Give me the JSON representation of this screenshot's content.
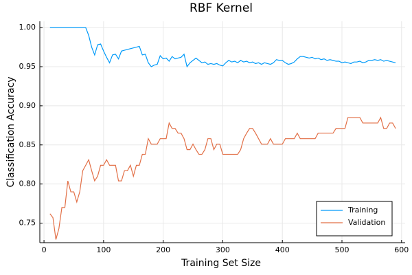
{
  "chart_data": {
    "type": "line",
    "title": "RBF Kernel",
    "x_label": "Training Set Size",
    "y_label": "Classification Accuracy",
    "x": [
      10,
      15,
      20,
      25,
      30,
      35,
      40,
      45,
      50,
      55,
      60,
      65,
      70,
      75,
      80,
      85,
      90,
      95,
      100,
      105,
      110,
      115,
      120,
      125,
      130,
      135,
      140,
      145,
      150,
      155,
      160,
      165,
      170,
      175,
      180,
      185,
      190,
      195,
      200,
      205,
      210,
      215,
      220,
      225,
      230,
      235,
      240,
      245,
      250,
      255,
      260,
      265,
      270,
      275,
      280,
      285,
      290,
      295,
      300,
      305,
      310,
      315,
      320,
      325,
      330,
      335,
      340,
      345,
      350,
      355,
      360,
      365,
      370,
      375,
      380,
      385,
      390,
      395,
      400,
      405,
      410,
      415,
      420,
      425,
      430,
      435,
      440,
      445,
      450,
      455,
      460,
      465,
      470,
      475,
      480,
      485,
      490,
      495,
      500,
      505,
      510,
      515,
      520,
      525,
      530,
      535,
      540,
      545,
      550,
      555,
      560,
      565,
      570,
      575,
      580,
      585,
      590
    ],
    "series": [
      {
        "name": "Training",
        "color": "#009af9",
        "values": [
          1.0,
          1.0,
          1.0,
          1.0,
          1.0,
          1.0,
          1.0,
          1.0,
          1.0,
          1.0,
          1.0,
          1.0,
          1.0,
          0.99,
          0.975,
          0.965,
          0.978,
          0.979,
          0.97,
          0.962,
          0.955,
          0.965,
          0.966,
          0.96,
          0.97,
          0.971,
          0.972,
          0.973,
          0.974,
          0.975,
          0.976,
          0.965,
          0.966,
          0.955,
          0.95,
          0.952,
          0.953,
          0.964,
          0.96,
          0.961,
          0.957,
          0.963,
          0.96,
          0.961,
          0.962,
          0.966,
          0.95,
          0.955,
          0.958,
          0.961,
          0.958,
          0.955,
          0.956,
          0.953,
          0.954,
          0.953,
          0.954,
          0.952,
          0.951,
          0.955,
          0.958,
          0.956,
          0.957,
          0.955,
          0.958,
          0.956,
          0.957,
          0.955,
          0.956,
          0.954,
          0.955,
          0.953,
          0.955,
          0.954,
          0.953,
          0.955,
          0.959,
          0.958,
          0.958,
          0.955,
          0.953,
          0.954,
          0.956,
          0.96,
          0.963,
          0.963,
          0.962,
          0.961,
          0.962,
          0.96,
          0.961,
          0.959,
          0.96,
          0.958,
          0.959,
          0.958,
          0.957,
          0.957,
          0.955,
          0.956,
          0.955,
          0.954,
          0.956,
          0.956,
          0.957,
          0.955,
          0.956,
          0.958,
          0.958,
          0.959,
          0.958,
          0.959,
          0.957,
          0.958,
          0.957,
          0.956,
          0.955
        ]
      },
      {
        "name": "Validation",
        "color": "#e26f46",
        "values": [
          0.762,
          0.757,
          0.729,
          0.743,
          0.77,
          0.77,
          0.804,
          0.79,
          0.79,
          0.777,
          0.79,
          0.817,
          0.824,
          0.831,
          0.817,
          0.804,
          0.81,
          0.824,
          0.824,
          0.831,
          0.824,
          0.824,
          0.824,
          0.804,
          0.804,
          0.817,
          0.817,
          0.824,
          0.81,
          0.824,
          0.824,
          0.838,
          0.838,
          0.858,
          0.851,
          0.851,
          0.851,
          0.858,
          0.858,
          0.858,
          0.878,
          0.871,
          0.871,
          0.865,
          0.865,
          0.858,
          0.844,
          0.844,
          0.851,
          0.844,
          0.838,
          0.838,
          0.844,
          0.858,
          0.858,
          0.844,
          0.851,
          0.851,
          0.838,
          0.838,
          0.838,
          0.838,
          0.838,
          0.838,
          0.844,
          0.858,
          0.865,
          0.871,
          0.871,
          0.865,
          0.858,
          0.851,
          0.851,
          0.851,
          0.858,
          0.851,
          0.851,
          0.851,
          0.851,
          0.858,
          0.858,
          0.858,
          0.858,
          0.865,
          0.858,
          0.858,
          0.858,
          0.858,
          0.858,
          0.858,
          0.865,
          0.865,
          0.865,
          0.865,
          0.865,
          0.865,
          0.871,
          0.871,
          0.871,
          0.871,
          0.885,
          0.885,
          0.885,
          0.885,
          0.885,
          0.878,
          0.878,
          0.878,
          0.878,
          0.878,
          0.878,
          0.885,
          0.871,
          0.871,
          0.878,
          0.878,
          0.871
        ]
      }
    ],
    "xlim": [
      -7,
      606
    ],
    "ylim": [
      0.725,
      1.008
    ],
    "xticks": [
      0,
      100,
      200,
      300,
      400,
      500,
      600
    ],
    "yticks": [
      {
        "value": 1.0,
        "label": "1.00"
      },
      0.95,
      {
        "value": 0.9,
        "label": "0.90"
      },
      0.85,
      {
        "value": 0.8,
        "label": "0.80"
      },
      0.75
    ],
    "grid": true,
    "legend": "bottom-right"
  }
}
